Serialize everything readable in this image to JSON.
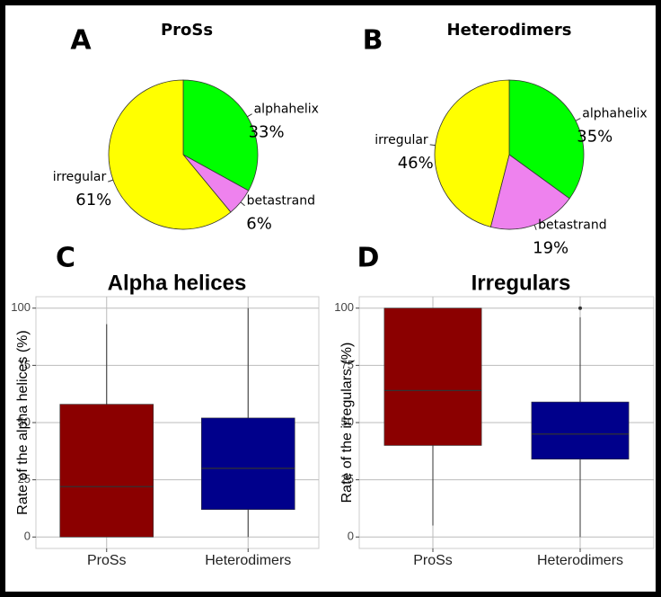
{
  "chart_data": [
    {
      "type": "pie",
      "panel_label": "A",
      "title": "ProSs",
      "categories": [
        "alphahelix",
        "betastrand",
        "irregular"
      ],
      "values": [
        33,
        6,
        61
      ],
      "value_labels": [
        "33%",
        "6%",
        "61%"
      ],
      "colors": [
        "#00ff00",
        "#ee82ee",
        "#ffff00"
      ]
    },
    {
      "type": "pie",
      "panel_label": "B",
      "title": "Heterodimers",
      "categories": [
        "alphahelix",
        "betastrand",
        "irregular"
      ],
      "values": [
        35,
        19,
        46
      ],
      "value_labels": [
        "35%",
        "19%",
        "46%"
      ],
      "colors": [
        "#00ff00",
        "#ee82ee",
        "#ffff00"
      ]
    },
    {
      "type": "box",
      "panel_label": "C",
      "title": "Alpha helices",
      "y_label": "Rate of the alpha helices (%)",
      "categories": [
        "ProSs",
        "Heterodimers"
      ],
      "boxes": [
        {
          "min": 0,
          "q1": 0,
          "median": 22,
          "q3": 58,
          "max": 93,
          "outliers": []
        },
        {
          "min": 0,
          "q1": 12,
          "median": 30,
          "q3": 52,
          "max": 100,
          "outliers": []
        }
      ],
      "colors": [
        "#8b0000",
        "#00008b"
      ],
      "ylim": [
        -5,
        105
      ],
      "yticks": [
        0,
        25,
        50,
        75,
        100
      ],
      "grid": true
    },
    {
      "type": "box",
      "panel_label": "D",
      "title": "Irregulars",
      "y_label": "Rate of the irregulars (%)",
      "categories": [
        "ProSs",
        "Heterodimers"
      ],
      "boxes": [
        {
          "min": 5,
          "q1": 40,
          "median": 64,
          "q3": 100,
          "max": 100,
          "outliers": []
        },
        {
          "min": 0,
          "q1": 34,
          "median": 45,
          "q3": 59,
          "max": 96,
          "outliers": [
            100
          ]
        }
      ],
      "colors": [
        "#8b0000",
        "#00008b"
      ],
      "ylim": [
        -5,
        105
      ],
      "yticks": [
        0,
        25,
        50,
        75,
        100
      ],
      "grid": true
    }
  ]
}
